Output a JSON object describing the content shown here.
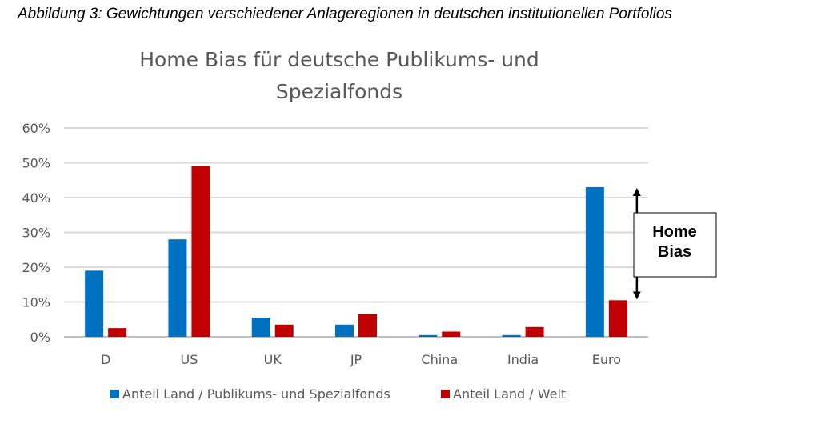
{
  "caption": "Abbildung 3: Gewichtungen verschiedener Anlageregionen in deutschen institutionellen Portfolios",
  "chart_data": {
    "type": "bar",
    "title_lines": [
      "Home Bias für deutsche Publikums- und",
      "Spezialfonds"
    ],
    "categories": [
      "D",
      "US",
      "UK",
      "JP",
      "China",
      "India",
      "Euro"
    ],
    "series": [
      {
        "name": "Anteil Land / Publikums- und Spezialfonds",
        "color": "#0070C0",
        "values": [
          19,
          28,
          5.5,
          3.5,
          0.5,
          0.5,
          43
        ]
      },
      {
        "name": "Anteil Land / Welt",
        "color": "#C00000",
        "values": [
          2.5,
          49,
          3.5,
          6.5,
          1.5,
          2.8,
          10.5
        ]
      }
    ],
    "ylim": [
      0,
      60
    ],
    "yticks": [
      0,
      10,
      20,
      30,
      40,
      50,
      60
    ],
    "ytick_labels": [
      "0%",
      "10%",
      "20%",
      "30%",
      "40%",
      "50%",
      "60%"
    ],
    "grid": true,
    "legend_position": "bottom",
    "annotation": {
      "lines": [
        "Home",
        "Bias"
      ],
      "category": "Euro",
      "from_value": 43,
      "to_value": 10.5
    }
  }
}
